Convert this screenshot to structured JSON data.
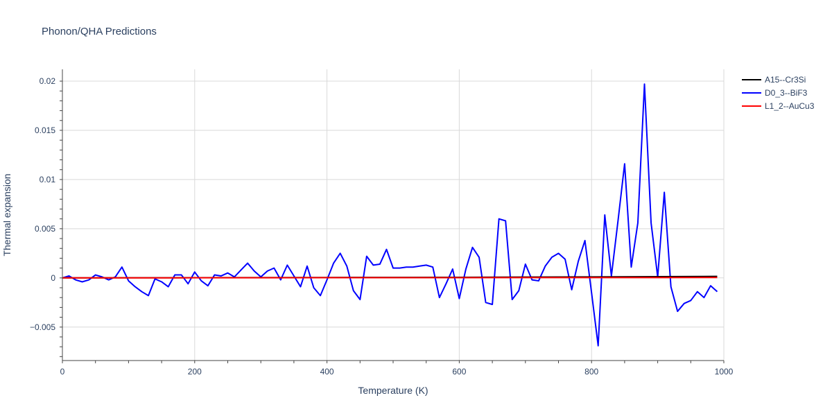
{
  "chart_data": {
    "type": "line",
    "title": "Phonon/QHA Predictions",
    "xlabel": "Temperature (K)",
    "ylabel": "Thermal expansion",
    "xlim": [
      0,
      1000
    ],
    "ylim": [
      -0.0084,
      0.0212
    ],
    "x_ticks": [
      0,
      200,
      400,
      600,
      800,
      1000
    ],
    "x_tick_labels": [
      "0",
      "200",
      "400",
      "600",
      "800",
      "1000"
    ],
    "y_ticks": [
      -0.005,
      0,
      0.005,
      0.01,
      0.015,
      0.02
    ],
    "y_tick_labels": [
      "−0.005",
      "0",
      "0.005",
      "0.01",
      "0.015",
      "0.02"
    ],
    "grid": true,
    "legend_position": "top-right",
    "series": [
      {
        "name": "A15--Cr3Si",
        "color": "#000000",
        "x": [
          0,
          100,
          200,
          300,
          400,
          500,
          600,
          700,
          800,
          900,
          990
        ],
        "y": [
          0,
          1e-05,
          2e-05,
          3e-05,
          4e-05,
          5e-05,
          6e-05,
          8e-05,
          0.0001,
          0.00013,
          0.00015
        ]
      },
      {
        "name": "D0_3--BiF3",
        "color": "#0000ff",
        "x": [
          0,
          10,
          20,
          30,
          40,
          50,
          60,
          70,
          80,
          90,
          100,
          110,
          120,
          130,
          140,
          150,
          160,
          170,
          180,
          190,
          200,
          210,
          220,
          230,
          240,
          250,
          260,
          270,
          280,
          290,
          300,
          310,
          320,
          330,
          340,
          350,
          360,
          370,
          380,
          390,
          400,
          410,
          420,
          430,
          440,
          450,
          460,
          470,
          480,
          490,
          500,
          510,
          520,
          530,
          540,
          550,
          560,
          570,
          580,
          590,
          600,
          610,
          620,
          630,
          640,
          650,
          660,
          670,
          680,
          690,
          700,
          710,
          720,
          730,
          740,
          750,
          760,
          770,
          780,
          790,
          800,
          810,
          820,
          830,
          840,
          850,
          860,
          870,
          880,
          890,
          900,
          910,
          920,
          930,
          940,
          950,
          960,
          970,
          980,
          990
        ],
        "y": [
          0,
          0.0002,
          -0.0002,
          -0.0004,
          -0.0002,
          0.0003,
          0.0001,
          -0.0002,
          0.0001,
          0.0011,
          -0.0003,
          -0.0009,
          -0.0014,
          -0.0018,
          -0.0001,
          -0.0004,
          -0.0009,
          0.0003,
          0.0003,
          -0.0006,
          0.0006,
          -0.0003,
          -0.0008,
          0.0003,
          0.0002,
          0.0005,
          0.0001,
          0.0008,
          0.0015,
          0.0007,
          0.0001,
          0.0007,
          0.001,
          -0.0002,
          0.0013,
          0.0002,
          -0.0009,
          0.0012,
          -0.001,
          -0.0018,
          -0.0002,
          0.0015,
          0.0025,
          0.0012,
          -0.0013,
          -0.0022,
          0.0022,
          0.0013,
          0.0014,
          0.0029,
          0.001,
          0.001,
          0.0011,
          0.0011,
          0.0012,
          0.0013,
          0.0011,
          -0.002,
          -0.0006,
          0.0009,
          -0.0021,
          0.0009,
          0.0031,
          0.0021,
          -0.0025,
          -0.0027,
          0.006,
          0.0058,
          -0.0022,
          -0.0013,
          0.0014,
          -0.0002,
          -0.0003,
          0.0012,
          0.0021,
          0.0025,
          0.0019,
          -0.0012,
          0.0017,
          0.0038,
          -0.0015,
          -0.0069,
          0.0064,
          0.0002,
          0.0058,
          0.0116,
          0.0011,
          0.0056,
          0.0197,
          0.0056,
          0.0001,
          0.0087,
          -0.0009,
          -0.0034,
          -0.0026,
          -0.0023,
          -0.0014,
          -0.002,
          -0.0008,
          -0.0014
        ]
      },
      {
        "name": "L1_2--AuCu3",
        "color": "#ff0000",
        "x": [
          0,
          100,
          200,
          300,
          400,
          500,
          600,
          700,
          800,
          900,
          990
        ],
        "y": [
          0,
          0,
          1e-05,
          1e-05,
          2e-05,
          2e-05,
          2e-05,
          3e-05,
          3e-05,
          3e-05,
          4e-05
        ]
      }
    ]
  }
}
